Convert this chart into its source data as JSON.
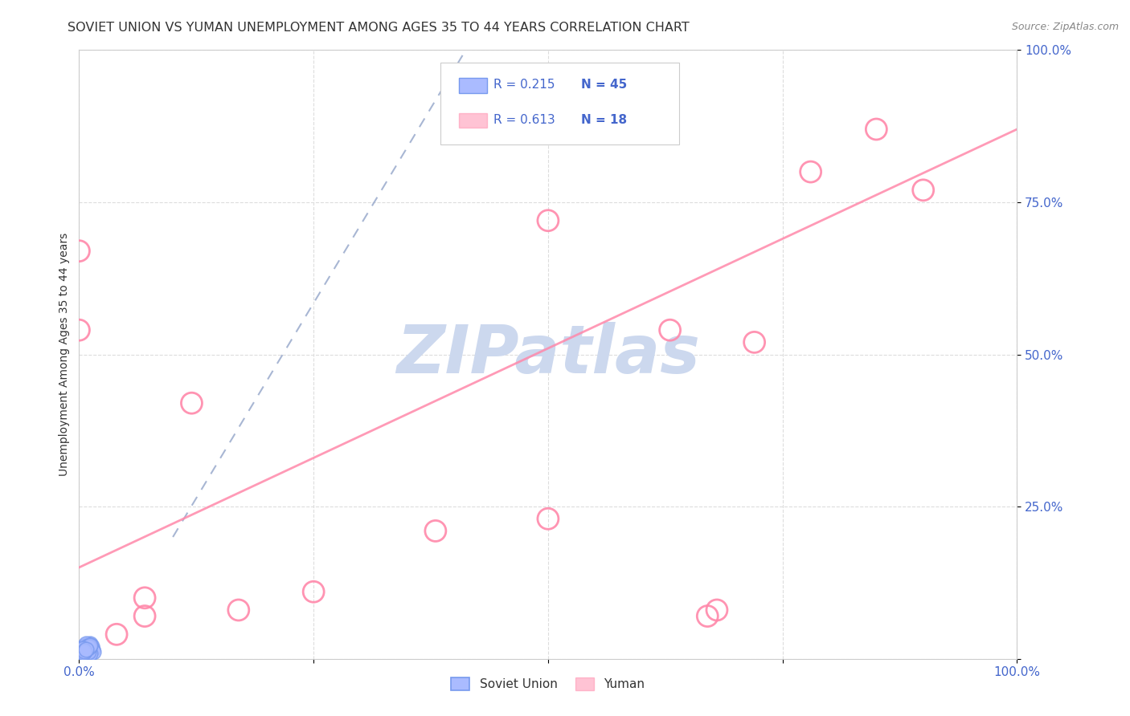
{
  "title": "SOVIET UNION VS YUMAN UNEMPLOYMENT AMONG AGES 35 TO 44 YEARS CORRELATION CHART",
  "source": "Source: ZipAtlas.com",
  "ylabel": "Unemployment Among Ages 35 to 44 years",
  "xlim": [
    0,
    1
  ],
  "ylim": [
    0,
    1
  ],
  "xticks": [
    0,
    0.25,
    0.5,
    0.75,
    1.0
  ],
  "yticks": [
    0,
    0.25,
    0.5,
    0.75,
    1.0
  ],
  "xticklabels": [
    "0.0%",
    "",
    "",
    "",
    "100.0%"
  ],
  "yticklabels": [
    "",
    "25.0%",
    "50.0%",
    "75.0%",
    "100.0%"
  ],
  "soviet_union_x": [
    0.003,
    0.004,
    0.005,
    0.005,
    0.006,
    0.006,
    0.007,
    0.007,
    0.008,
    0.008,
    0.009,
    0.01,
    0.01,
    0.011,
    0.011,
    0.012,
    0.012,
    0.013,
    0.014,
    0.015,
    0.003,
    0.004,
    0.005,
    0.006,
    0.007,
    0.008,
    0.009,
    0.01,
    0.011,
    0.012,
    0.003,
    0.004,
    0.005,
    0.006,
    0.007,
    0.008,
    0.009,
    0.01,
    0.011,
    0.012,
    0.003,
    0.004,
    0.005,
    0.006,
    0.007
  ],
  "soviet_union_y": [
    0.01,
    0.012,
    0.015,
    0.018,
    0.02,
    0.014,
    0.022,
    0.017,
    0.019,
    0.016,
    0.013,
    0.021,
    0.018,
    0.023,
    0.016,
    0.011,
    0.025,
    0.02,
    0.015,
    0.012,
    0.008,
    0.01,
    0.013,
    0.019,
    0.024,
    0.016,
    0.014,
    0.017,
    0.021,
    0.009,
    0.011,
    0.014,
    0.016,
    0.013,
    0.018,
    0.015,
    0.02,
    0.012,
    0.019,
    0.022,
    0.015,
    0.017,
    0.01,
    0.013,
    0.016
  ],
  "yuman_x": [
    0.0,
    0.0,
    0.04,
    0.07,
    0.07,
    0.12,
    0.17,
    0.25,
    0.38,
    0.5,
    0.5,
    0.63,
    0.67,
    0.68,
    0.72,
    0.78,
    0.85,
    0.9
  ],
  "yuman_y": [
    0.67,
    0.54,
    0.04,
    0.07,
    0.1,
    0.42,
    0.08,
    0.11,
    0.21,
    0.23,
    0.72,
    0.54,
    0.07,
    0.08,
    0.52,
    0.8,
    0.87,
    0.77
  ],
  "soviet_R": 0.215,
  "soviet_N": 45,
  "yuman_R": 0.613,
  "yuman_N": 18,
  "soviet_color": "#7799ee",
  "soviet_fill_color": "#aabbff",
  "yuman_color": "#ff88aa",
  "soviet_line_color": "#99aacc",
  "yuman_line_color": "#ff88aa",
  "background_color": "#ffffff",
  "grid_color": "#dddddd",
  "watermark_color": "#ccd8ee",
  "tick_color": "#4466cc",
  "title_fontsize": 11.5,
  "label_fontsize": 10,
  "tick_fontsize": 11
}
